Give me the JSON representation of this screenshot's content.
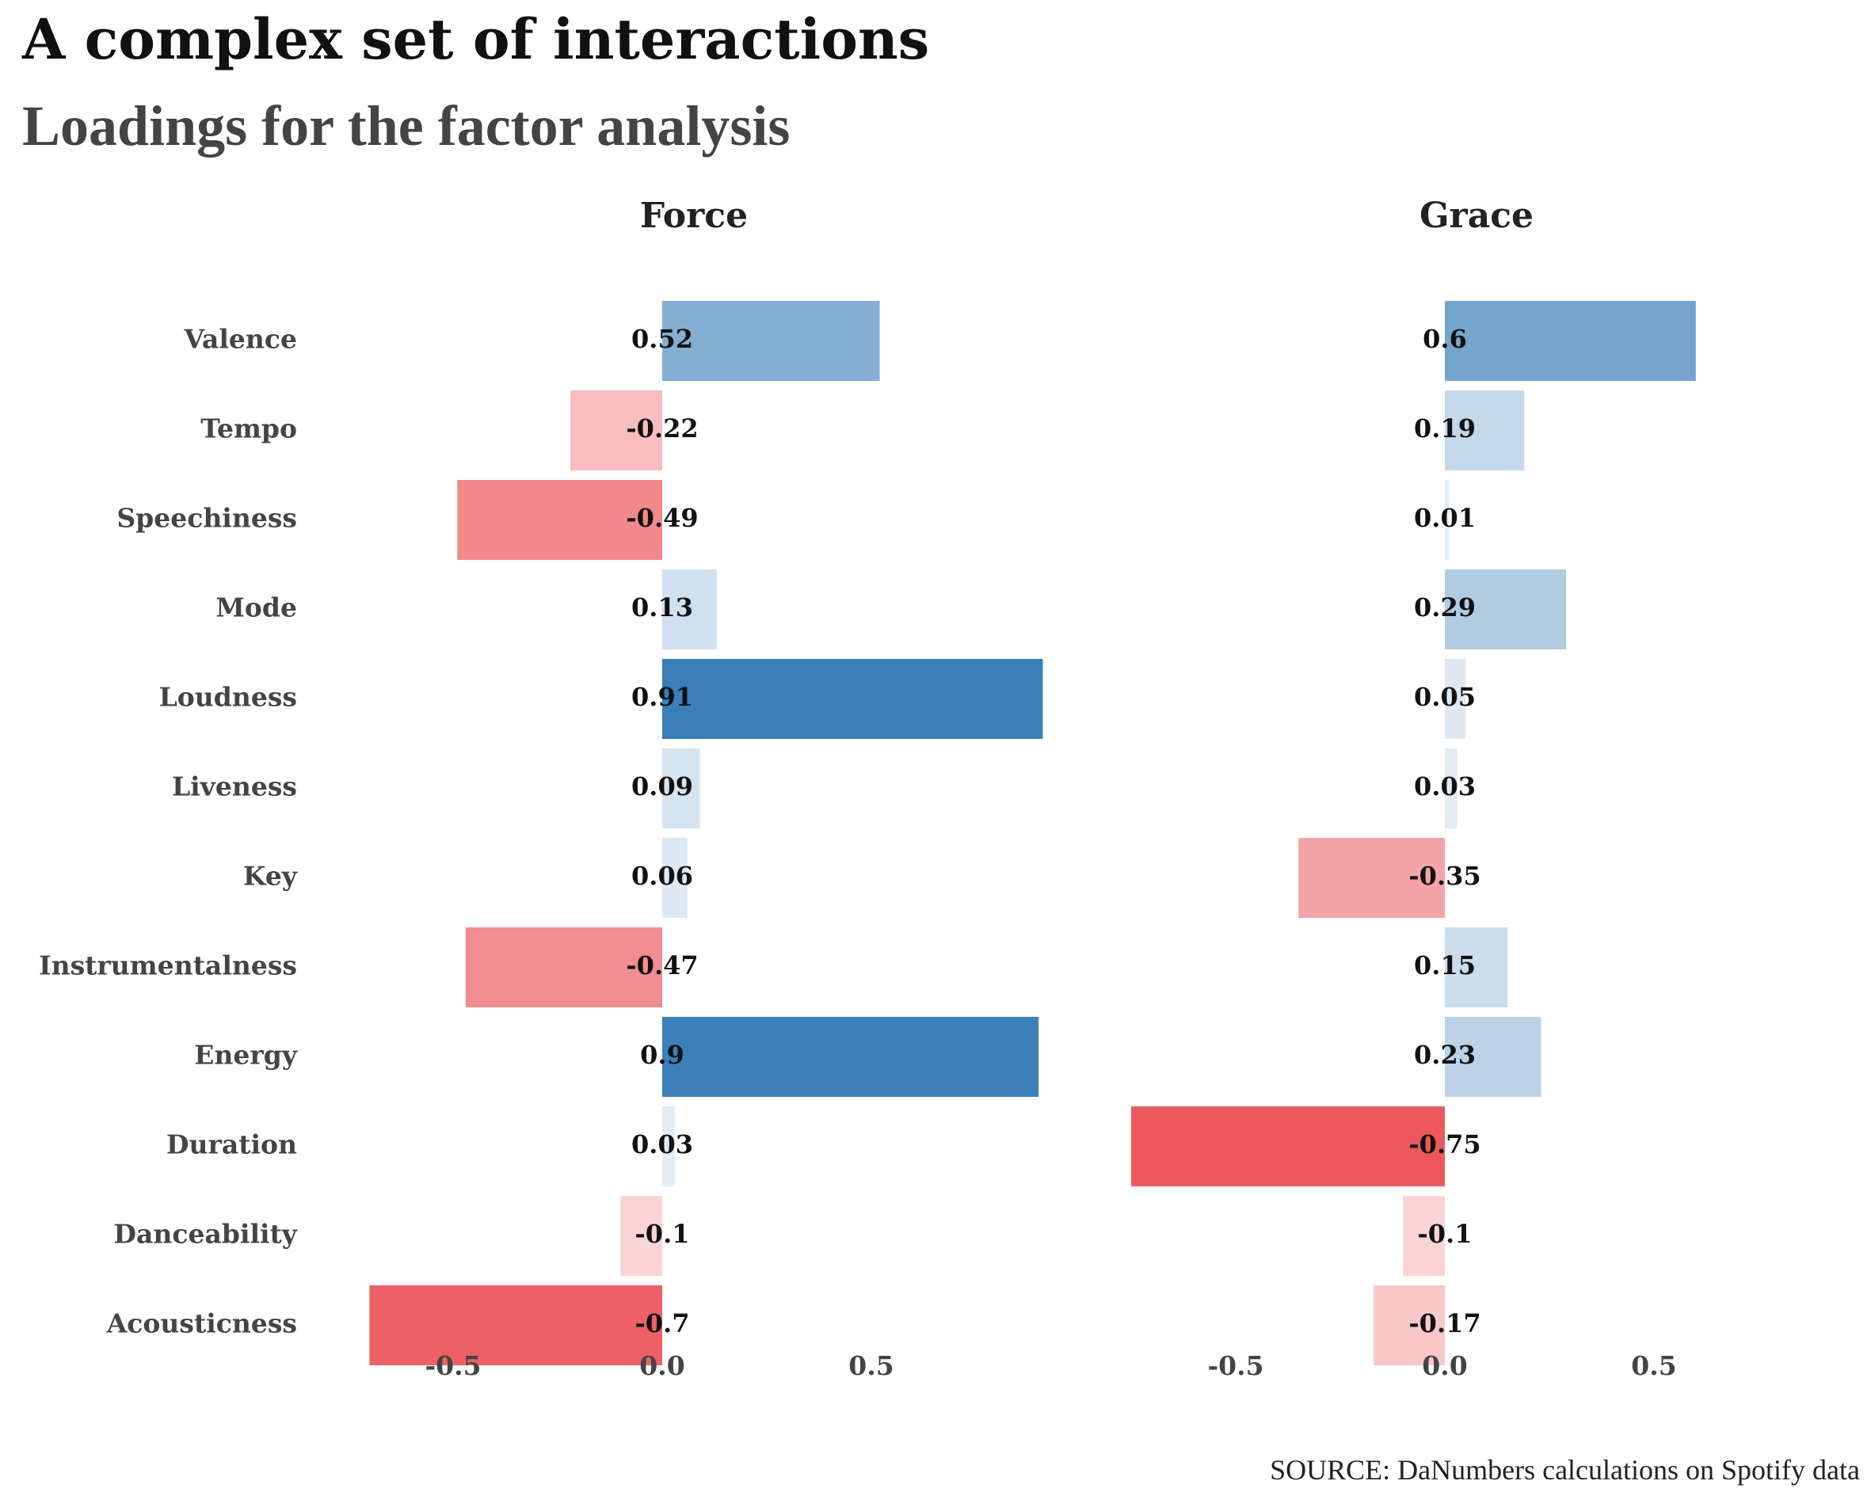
{
  "chart_data": {
    "type": "bar",
    "orientation": "horizontal",
    "title": "A complex set of interactions",
    "subtitle": "Loadings for the factor analysis",
    "source": "SOURCE: DaNumbers calculations on Spotify data",
    "categories": [
      "Valence",
      "Tempo",
      "Speechiness",
      "Mode",
      "Loudness",
      "Liveness",
      "Key",
      "Instrumentalness",
      "Energy",
      "Duration",
      "Danceability",
      "Acousticness"
    ],
    "xticks": [
      -0.5,
      0.0,
      0.5
    ],
    "xtick_labels": [
      "-0.5",
      "0.0",
      "0.5"
    ],
    "xlim": [
      -0.75,
      0.91
    ],
    "grid": false,
    "legend": "none",
    "colors": {
      "positive_strong": "#3a7fb8",
      "negative_strong": "#e8393f",
      "neutral": "#ffffff"
    },
    "panels": [
      {
        "name": "Force",
        "values": [
          0.52,
          -0.22,
          -0.49,
          0.13,
          0.91,
          0.09,
          0.06,
          -0.47,
          0.9,
          0.03,
          -0.1,
          -0.7
        ],
        "labels": [
          "0.52",
          "-0.22",
          "-0.49",
          "0.13",
          "0.91",
          "0.09",
          "0.06",
          "-0.47",
          "0.9",
          "0.03",
          "-0.1",
          "-0.7"
        ]
      },
      {
        "name": "Grace",
        "values": [
          0.6,
          0.19,
          0.01,
          0.29,
          0.05,
          0.03,
          -0.35,
          0.15,
          0.23,
          -0.75,
          -0.1,
          -0.17
        ],
        "labels": [
          "0.6",
          "0.19",
          "0.01",
          "0.29",
          "0.05",
          "0.03",
          "-0.35",
          "0.15",
          "0.23",
          "-0.75",
          "-0.1",
          "-0.17"
        ]
      }
    ]
  }
}
